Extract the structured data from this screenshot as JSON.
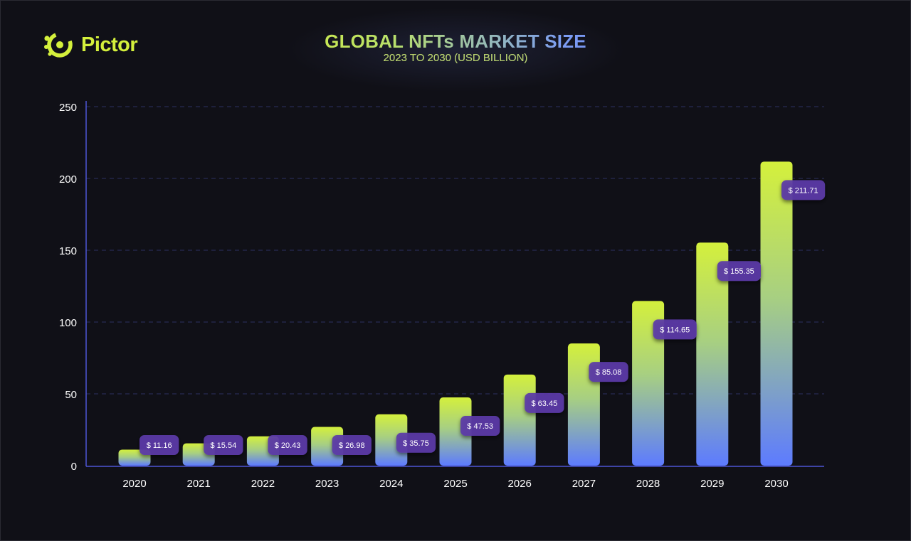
{
  "brand": {
    "name": "Pictor",
    "logo_icon": "pictor-ring-icon"
  },
  "colors": {
    "background": "#101017",
    "accent_lime": "#d4f03c",
    "accent_blue": "#5d7bff",
    "label_bg": "#5b3aa8",
    "axis": "#4d55d6",
    "grid": "#2d3160",
    "text": "#ffffff"
  },
  "chart_data": {
    "type": "bar",
    "title": "GLOBAL NFTs MARKET SIZE",
    "subtitle": "2023 TO 2030 (USD BILLION)",
    "categories": [
      "2020",
      "2021",
      "2022",
      "2023",
      "2024",
      "2025",
      "2026",
      "2027",
      "2028",
      "2029",
      "2030"
    ],
    "values": [
      11.16,
      15.54,
      20.43,
      26.98,
      35.75,
      47.53,
      63.45,
      85.08,
      114.65,
      155.35,
      211.71
    ],
    "value_labels": [
      "$ 11.16",
      "$ 15.54",
      "$ 20.43",
      "$ 26.98",
      "$ 35.75",
      "$ 47.53",
      "$ 63.45",
      "$ 85.08",
      "$ 114.65",
      "$ 155.35",
      "$ 211.71"
    ],
    "y_ticks": [
      0,
      50,
      100,
      150,
      200,
      250
    ],
    "ylim": [
      0,
      250
    ],
    "xlabel": "",
    "ylabel": "",
    "grid": true,
    "legend": "none"
  }
}
